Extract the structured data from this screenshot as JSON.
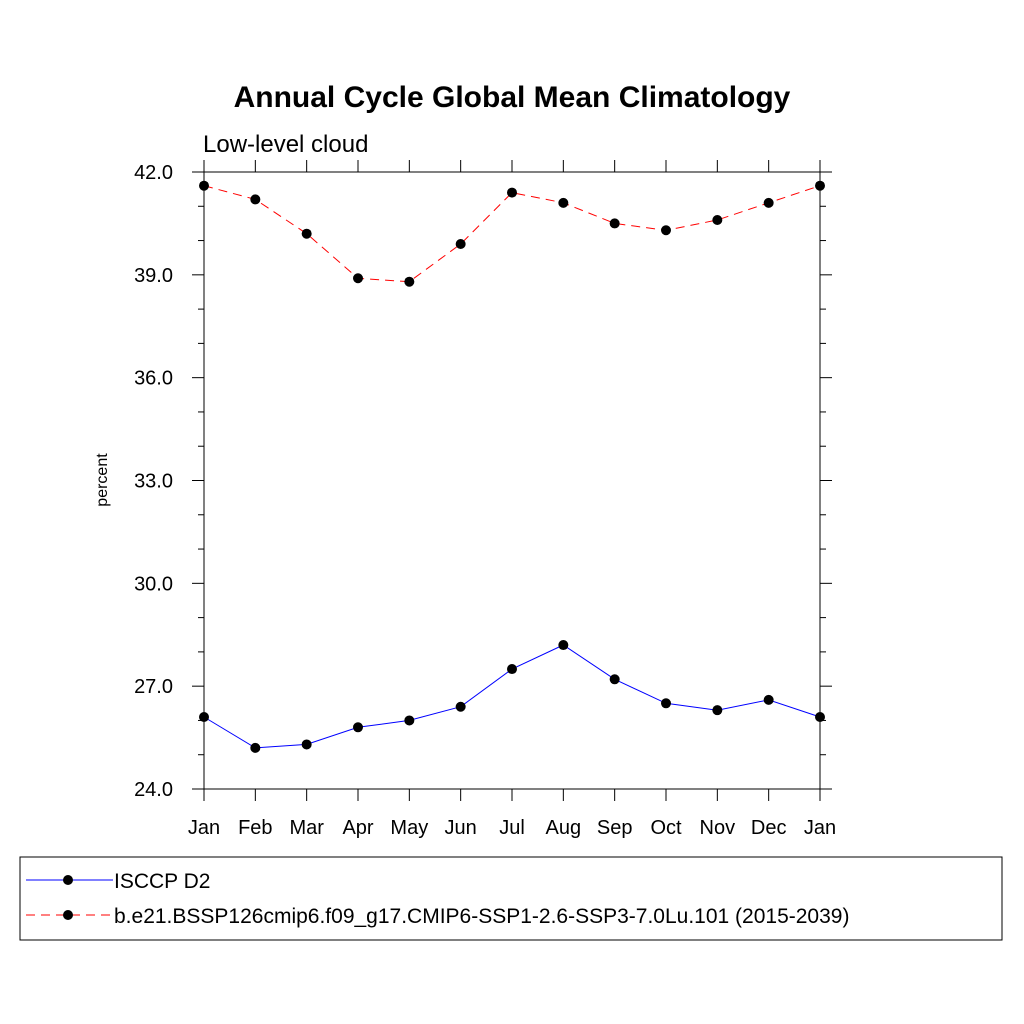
{
  "chart_data": {
    "type": "line",
    "title": "Annual Cycle Global Mean Climatology",
    "subtitle": "Low-level cloud",
    "xlabel": "",
    "ylabel": "percent",
    "ylim": [
      24.0,
      42.0
    ],
    "yticks": [
      "24.0",
      "27.0",
      "30.0",
      "33.0",
      "36.0",
      "39.0",
      "42.0"
    ],
    "categories": [
      "Jan",
      "Feb",
      "Mar",
      "Apr",
      "May",
      "Jun",
      "Jul",
      "Aug",
      "Sep",
      "Oct",
      "Nov",
      "Dec",
      "Jan"
    ],
    "grid": false,
    "legend_position": "bottom",
    "series": [
      {
        "name": "ISCCP D2",
        "color": "#0000ff",
        "dashed": false,
        "marker": "filled-circle",
        "values": [
          26.1,
          25.2,
          25.3,
          25.8,
          26.0,
          26.4,
          27.5,
          28.2,
          27.2,
          26.5,
          26.3,
          26.6,
          26.1
        ]
      },
      {
        "name": "b.e21.BSSP126cmip6.f09_g17.CMIP6-SSP1-2.6-SSP3-7.0Lu.101 (2015-2039)",
        "color": "#ff0000",
        "dashed": true,
        "marker": "filled-circle",
        "values": [
          41.6,
          41.2,
          40.2,
          38.9,
          38.8,
          39.9,
          41.4,
          41.1,
          40.5,
          40.3,
          40.6,
          41.1,
          41.6
        ]
      }
    ]
  }
}
